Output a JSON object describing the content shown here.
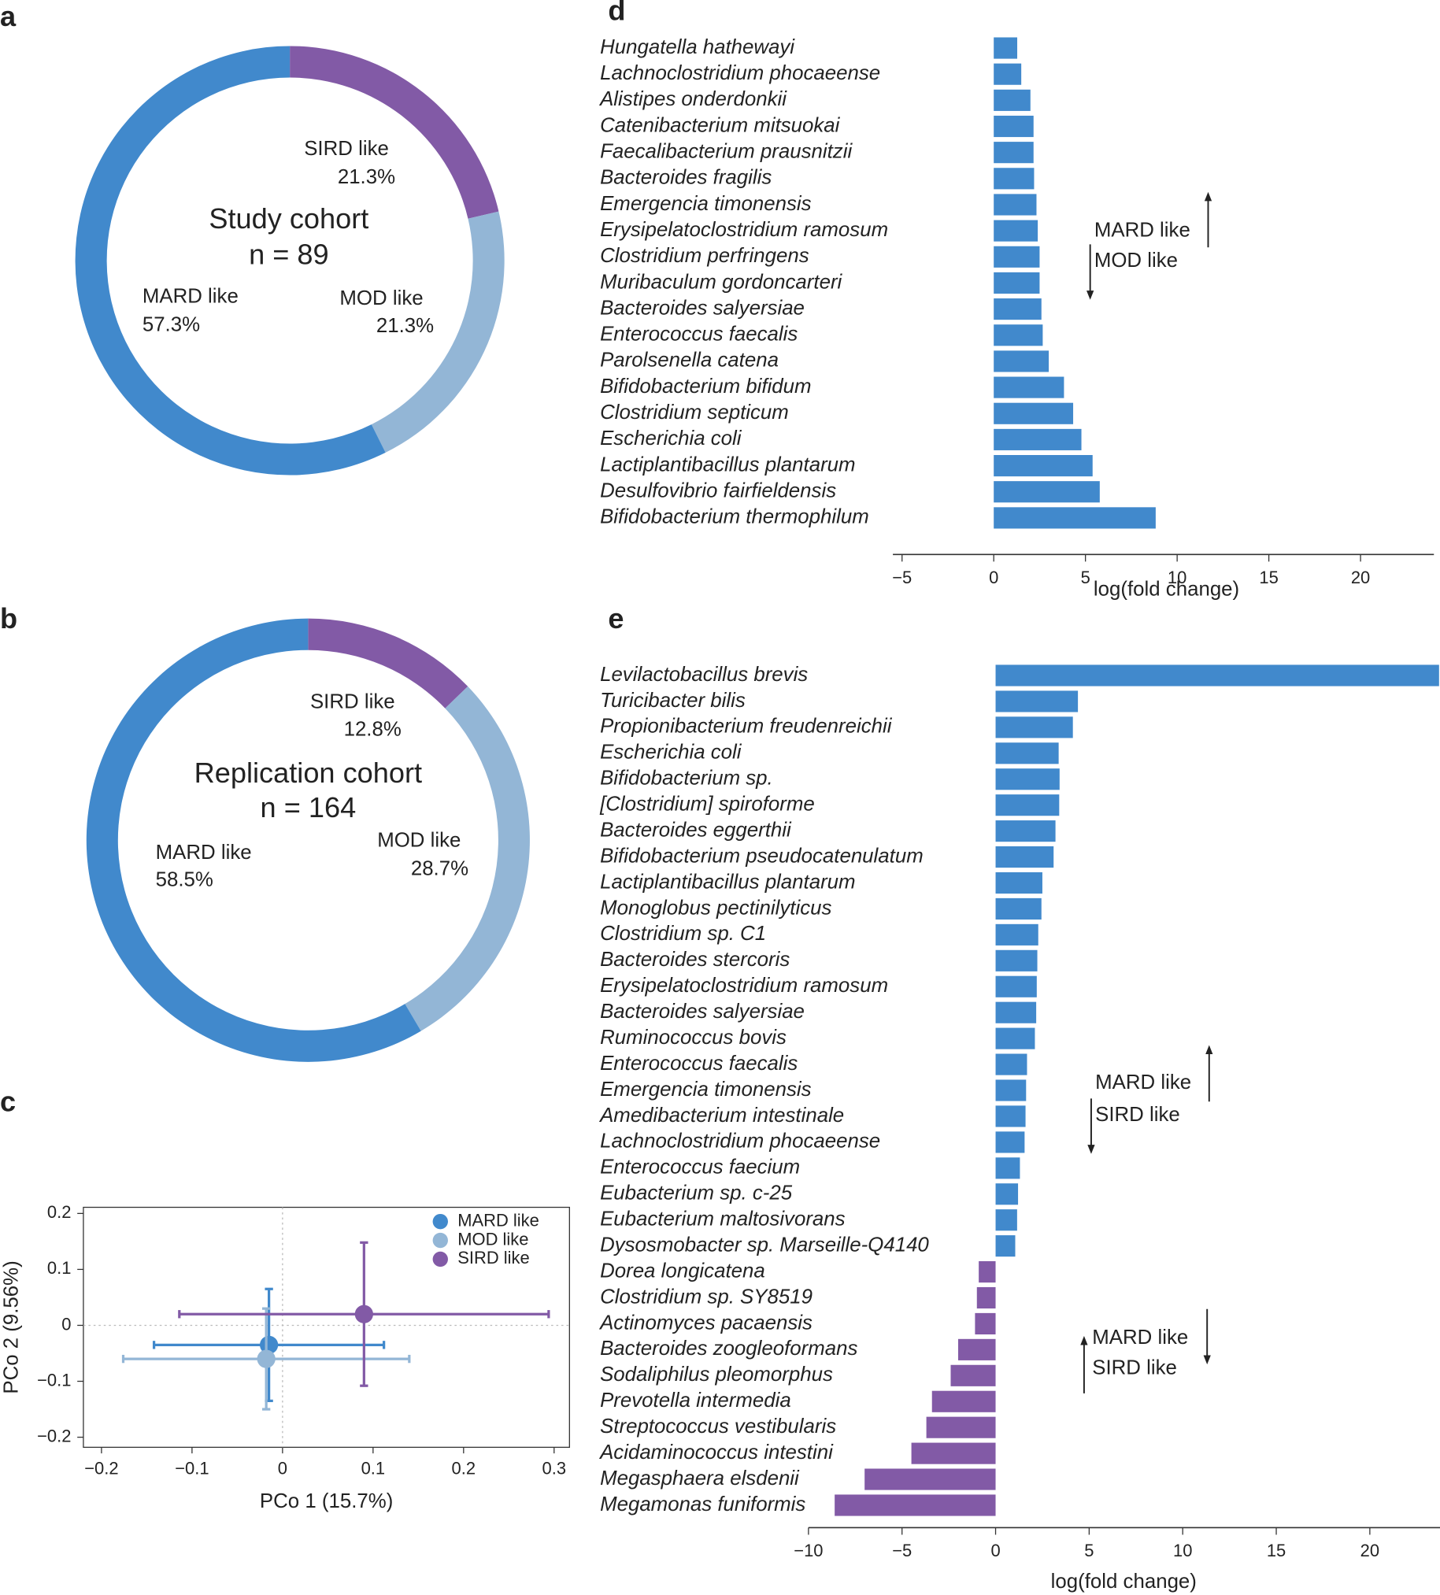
{
  "chart_data": [
    {
      "type": "donut",
      "panel": "a",
      "title": "Study cohort",
      "subtitle": "n = 89",
      "categories": [
        "SIRD like",
        "MOD like",
        "MARD like"
      ],
      "values": [
        21.3,
        21.3,
        57.3
      ],
      "value_labels": [
        "21.3%",
        "21.3%",
        "57.3%"
      ],
      "colors": [
        "#825aa6",
        "#93b6d6",
        "#4189cc"
      ]
    },
    {
      "type": "donut",
      "panel": "b",
      "title": "Replication cohort",
      "subtitle": "n = 164",
      "categories": [
        "SIRD like",
        "MOD like",
        "MARD like"
      ],
      "values": [
        12.8,
        28.7,
        58.5
      ],
      "value_labels": [
        "12.8%",
        "28.7%",
        "58.5%"
      ],
      "colors": [
        "#825aa6",
        "#93b6d6",
        "#4189cc"
      ]
    },
    {
      "type": "scatter",
      "panel": "c",
      "xlabel": "PCo 1 (15.7%)",
      "ylabel": "PCo 2 (9.56%)",
      "xlim": [
        -0.22,
        0.317
      ],
      "ylim": [
        -0.218,
        0.211
      ],
      "xticks": [
        {
          "value": -0.2,
          "label": "−0.2"
        },
        {
          "value": -0.1,
          "label": "−0.1"
        },
        0,
        0.1,
        0.2,
        0.3
      ],
      "yticks": [
        {
          "value": -0.2,
          "label": "−0.2"
        },
        {
          "value": -0.1,
          "label": "−0.1"
        },
        0,
        0.1,
        0.2
      ],
      "legend": "upper right",
      "series": [
        {
          "name": "MARD like",
          "color": "#4189cc",
          "x": [
            -0.015
          ],
          "y": [
            -0.035
          ],
          "xerr": [
            0.127
          ],
          "yerr": [
            0.1
          ]
        },
        {
          "name": "MOD like",
          "color": "#93b6d6",
          "x": [
            -0.018
          ],
          "y": [
            -0.06
          ],
          "xerr": [
            0.158
          ],
          "yerr": [
            0.09
          ]
        },
        {
          "name": "SIRD like",
          "color": "#825aa6",
          "x": [
            0.09
          ],
          "y": [
            0.02
          ],
          "xerr": [
            0.204
          ],
          "yerr": [
            0.128
          ]
        }
      ]
    },
    {
      "type": "barh",
      "panel": "d",
      "xlabel": "log(fold change)",
      "xlim": [
        -5.5,
        24
      ],
      "xticks": [
        {
          "value": -5,
          "label": "−5"
        },
        0,
        5,
        10,
        15,
        20
      ],
      "color": "#4189cc",
      "negative_color": "#825aa6",
      "annotations": [
        "MARD like",
        "MOD like"
      ],
      "categories": [
        "Hungatella hathewayi",
        "Lachnoclostridium phocaeense",
        "Alistipes onderdonkii",
        "Catenibacterium mitsuokai",
        "Faecalibacterium prausnitzii",
        "Bacteroides fragilis",
        "Emergencia timonensis",
        "Erysipelatoclostridium ramosum",
        "Clostridium perfringens",
        "Muribaculum gordoncarteri",
        "Bacteroides salyersiae",
        "Enterococcus faecalis",
        "Parolsenella catena",
        "Bifidobacterium bifidum",
        "Clostridium septicum",
        "Escherichia coli",
        "Lactiplantibacillus plantarum",
        "Desulfovibrio fairfieldensis",
        "Bifidobacterium thermophilum"
      ],
      "values": [
        1.28,
        1.5,
        2.0,
        2.17,
        2.17,
        2.2,
        2.33,
        2.4,
        2.5,
        2.5,
        2.6,
        2.67,
        3.0,
        3.83,
        4.33,
        4.78,
        5.39,
        5.78,
        8.83
      ]
    },
    {
      "type": "barh",
      "panel": "e",
      "xlabel": "log(fold change)",
      "xlim": [
        -10,
        23.75
      ],
      "xticks": [
        {
          "value": -10,
          "label": "−10"
        },
        {
          "value": -5,
          "label": "−5"
        },
        0,
        5,
        10,
        15,
        20
      ],
      "color": "#4189cc",
      "negative_color": "#825aa6",
      "annotations": [
        "MARD like",
        "SIRD like",
        "MARD like",
        "SIRD like"
      ],
      "categories": [
        "Levilactobacillus brevis",
        "Turicibacter bilis",
        "Propionibacterium freudenreichii",
        "Escherichia coli",
        "Bifidobacterium sp.",
        "[Clostridium] spiroforme",
        "Bacteroides eggerthii",
        "Bifidobacterium pseudocatenulatum",
        "Lactiplantibacillus plantarum",
        "Monoglobus pectinilyticus",
        "Clostridium sp. C1",
        "Bacteroides stercoris",
        "Erysipelatoclostridium ramosum",
        "Bacteroides salyersiae",
        "Ruminococcus bovis",
        "Enterococcus faecalis",
        "Emergencia timonensis",
        "Amedibacterium intestinale",
        "Lachnoclostridium phocaeense",
        "Enterococcus faecium",
        "Eubacterium sp. c-25",
        "Eubacterium maltosivorans",
        "Dysosmobacter sp. Marseille-Q4140",
        "Dorea longicatena",
        "Clostridium sp. SY8519",
        "Actinomyces pacaensis",
        "Bacteroides zoogleoformans",
        "Sodaliphilus pleomorphus",
        "Prevotella intermedia",
        "Streptococcus vestibularis",
        "Acidaminococcus intestini",
        "Megasphaera elsdenii",
        "Megamonas funiformis"
      ],
      "values": [
        23.7,
        4.4,
        4.13,
        3.37,
        3.42,
        3.4,
        3.2,
        3.1,
        2.5,
        2.45,
        2.28,
        2.23,
        2.2,
        2.17,
        2.1,
        1.68,
        1.63,
        1.6,
        1.55,
        1.3,
        1.2,
        1.15,
        1.05,
        -0.9,
        -1.0,
        -1.1,
        -2.0,
        -2.4,
        -3.4,
        -3.7,
        -4.5,
        -7.0,
        -8.6
      ]
    }
  ]
}
